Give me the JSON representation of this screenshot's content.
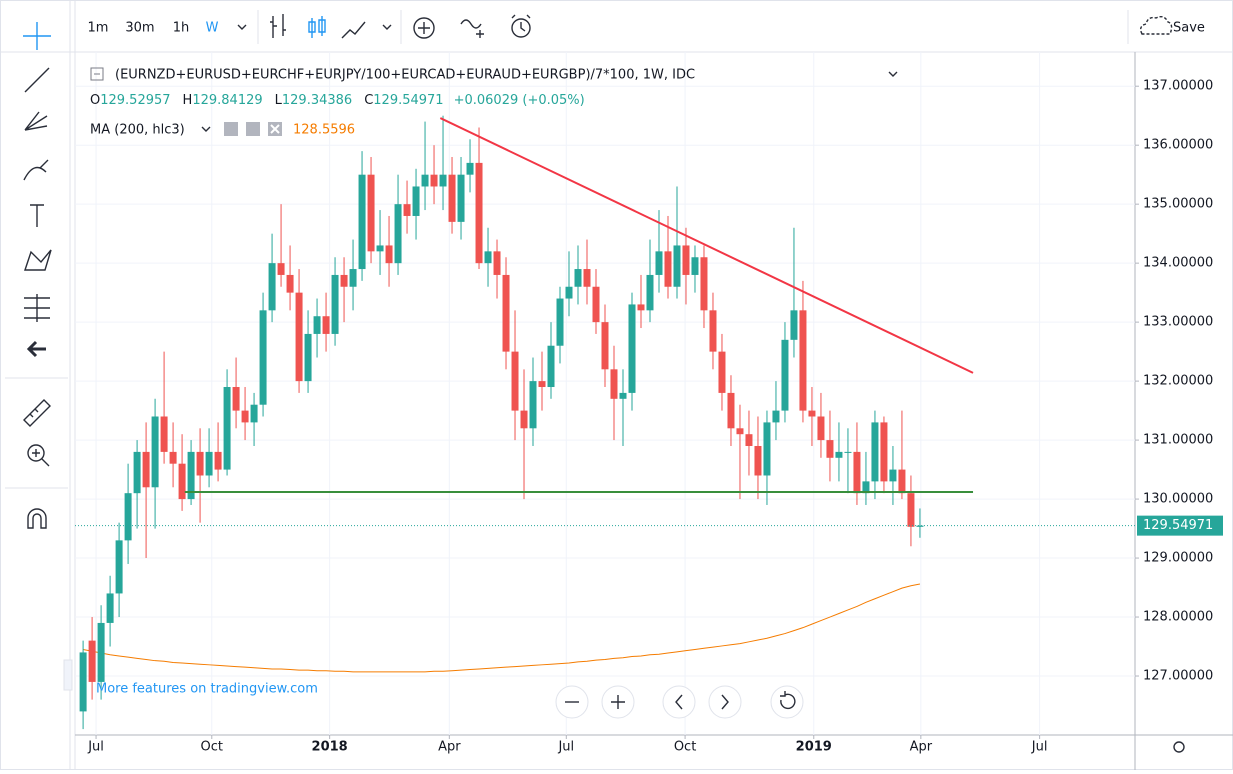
{
  "ui": {
    "intervals": [
      "1m",
      "30m",
      "1h",
      "W"
    ],
    "save": "Save",
    "promo": "More features on tradingview.com"
  },
  "chart_data": {
    "type": "candlestick",
    "title": "(EURNZD+EURUSD+EURCHF+EURJPY/100+EURCAD+EURAUD+EURGBP)/7*100, 1W, IDC",
    "ohlc_legend": [
      {
        "label": "O",
        "text": "129.52957"
      },
      {
        "label": "H",
        "text": "129.84129"
      },
      {
        "label": "L",
        "text": "129.34386"
      },
      {
        "label": "C",
        "text": "129.54971"
      }
    ],
    "change": "+0.06029 (+0.05%)",
    "up_color": "#26a69a",
    "down_color": "#ef5350",
    "open": [
      126.4,
      127.6,
      126.9,
      127.9,
      128.4,
      129.3,
      130.1,
      130.8,
      130.2,
      131.4,
      130.8,
      130.6,
      130.0,
      130.8,
      130.4,
      130.8,
      130.5,
      131.9,
      131.5,
      131.3,
      131.6,
      133.2,
      134.0,
      133.8,
      133.5,
      132.0,
      132.8,
      133.1,
      132.8,
      133.8,
      133.6,
      133.9,
      135.5,
      134.2,
      134.3,
      134.0,
      135.0,
      134.8,
      135.3,
      135.5,
      135.3,
      135.5,
      134.7,
      135.5,
      135.7,
      134.0,
      134.2,
      133.8,
      132.5,
      131.5,
      131.2,
      132.0,
      131.9,
      132.6,
      133.4,
      133.6,
      133.9,
      133.6,
      133.0,
      132.2,
      131.7,
      131.8,
      133.3,
      133.2,
      133.8,
      134.2,
      133.6,
      134.3,
      133.8,
      134.1,
      133.2,
      132.5,
      131.8,
      131.2,
      131.1,
      130.9,
      130.4,
      131.3,
      131.5,
      132.7,
      133.2,
      131.5,
      131.4,
      131.0,
      130.7,
      130.8,
      130.8,
      130.1,
      130.3,
      131.3,
      130.3,
      130.5,
      130.1,
      129.52957
    ],
    "high": [
      127.6,
      128.0,
      128.2,
      128.7,
      129.6,
      130.6,
      131.0,
      131.3,
      131.7,
      132.5,
      131.3,
      131.1,
      131.0,
      131.2,
      131.2,
      131.3,
      132.2,
      132.4,
      131.9,
      131.8,
      133.5,
      134.5,
      135.0,
      134.3,
      133.9,
      133.2,
      133.4,
      133.5,
      134.1,
      134.1,
      134.4,
      135.9,
      135.8,
      134.9,
      134.8,
      135.5,
      135.4,
      135.6,
      136.4,
      136.0,
      136.5,
      135.8,
      135.8,
      136.1,
      136.3,
      134.6,
      134.4,
      134.1,
      133.2,
      132.2,
      132.4,
      132.5,
      133.0,
      133.6,
      134.2,
      134.3,
      134.4,
      133.9,
      133.3,
      132.6,
      132.2,
      133.5,
      133.8,
      134.4,
      134.9,
      134.8,
      135.3,
      134.6,
      134.3,
      134.3,
      133.5,
      132.8,
      132.1,
      131.6,
      131.5,
      131.4,
      131.5,
      132.0,
      133.0,
      134.6,
      133.7,
      131.9,
      131.8,
      131.5,
      131.3,
      131.2,
      131.3,
      130.8,
      131.5,
      131.4,
      130.9,
      131.5,
      130.4,
      129.84129
    ],
    "low": [
      126.1,
      126.6,
      126.6,
      127.5,
      128.0,
      128.9,
      129.5,
      129.0,
      129.5,
      130.6,
      130.2,
      129.8,
      129.9,
      129.6,
      130.2,
      130.3,
      130.4,
      131.2,
      131.0,
      130.9,
      131.4,
      133.0,
      133.6,
      133.2,
      131.8,
      131.8,
      132.4,
      132.5,
      132.6,
      133.0,
      133.2,
      133.7,
      134.0,
      133.8,
      133.6,
      133.8,
      134.5,
      134.4,
      134.9,
      135.0,
      134.9,
      134.5,
      134.4,
      135.2,
      133.9,
      133.6,
      133.4,
      132.2,
      131.0,
      130.0,
      130.9,
      131.5,
      131.7,
      132.3,
      133.1,
      133.3,
      133.3,
      132.8,
      131.9,
      131.0,
      130.9,
      131.5,
      132.9,
      133.0,
      133.5,
      133.4,
      133.4,
      133.3,
      133.5,
      132.9,
      132.2,
      131.5,
      130.9,
      130.0,
      130.4,
      130.0,
      129.9,
      131.0,
      131.3,
      132.4,
      131.3,
      130.9,
      130.7,
      130.3,
      130.3,
      130.1,
      129.9,
      129.9,
      130.0,
      130.1,
      129.9,
      130.0,
      129.2,
      129.34386
    ],
    "close": [
      127.4,
      126.9,
      127.9,
      128.4,
      129.3,
      130.1,
      130.8,
      130.2,
      131.4,
      130.8,
      130.6,
      130.0,
      130.8,
      130.4,
      130.8,
      130.5,
      131.9,
      131.5,
      131.3,
      131.6,
      133.2,
      134.0,
      133.8,
      133.5,
      132.0,
      132.8,
      133.1,
      132.8,
      133.8,
      133.6,
      133.9,
      135.5,
      134.2,
      134.3,
      134.0,
      135.0,
      134.8,
      135.3,
      135.5,
      135.3,
      135.5,
      134.7,
      135.5,
      135.7,
      134.0,
      134.2,
      133.8,
      132.5,
      131.5,
      131.2,
      132.0,
      131.9,
      132.6,
      133.4,
      133.6,
      133.9,
      133.6,
      133.0,
      132.2,
      131.7,
      131.8,
      133.3,
      133.2,
      133.8,
      134.2,
      133.6,
      134.3,
      133.8,
      134.1,
      133.2,
      132.5,
      131.8,
      131.2,
      131.1,
      130.9,
      130.4,
      131.3,
      131.5,
      132.7,
      133.2,
      131.5,
      131.4,
      131.0,
      130.7,
      130.8,
      130.8,
      130.1,
      130.3,
      131.3,
      130.3,
      130.5,
      130.1,
      129.53,
      129.54971
    ],
    "ma": {
      "label": "MA (200, hlc3)",
      "color": "#f57c00",
      "values": [
        127.45,
        127.42,
        127.39,
        127.36,
        127.34,
        127.32,
        127.3,
        127.28,
        127.26,
        127.25,
        127.23,
        127.22,
        127.21,
        127.2,
        127.19,
        127.18,
        127.17,
        127.16,
        127.15,
        127.14,
        127.13,
        127.12,
        127.12,
        127.11,
        127.1,
        127.1,
        127.09,
        127.09,
        127.08,
        127.08,
        127.07,
        127.07,
        127.07,
        127.07,
        127.07,
        127.07,
        127.07,
        127.07,
        127.07,
        127.08,
        127.08,
        127.09,
        127.1,
        127.11,
        127.12,
        127.13,
        127.14,
        127.15,
        127.16,
        127.17,
        127.18,
        127.19,
        127.2,
        127.21,
        127.22,
        127.24,
        127.25,
        127.27,
        127.28,
        127.3,
        127.31,
        127.33,
        127.34,
        127.36,
        127.37,
        127.39,
        127.41,
        127.43,
        127.45,
        127.47,
        127.49,
        127.51,
        127.53,
        127.55,
        127.58,
        127.61,
        127.64,
        127.68,
        127.72,
        127.77,
        127.82,
        127.88,
        127.94,
        128.0,
        128.06,
        128.12,
        128.18,
        128.25,
        128.31,
        128.37,
        128.43,
        128.49,
        128.53,
        128.5596
      ]
    },
    "drawings": [
      {
        "x": [
          39.7,
          98.9
        ],
        "y": [
          136.46,
          132.14
        ],
        "color": "#f23645"
      },
      {
        "x": [
          11.3,
          98.9
        ],
        "y": [
          130.12,
          130.12
        ],
        "color": "#388e3c"
      }
    ],
    "xlim": [
      -0.9,
      116.9
    ],
    "xticks": [
      {
        "value": 1.44,
        "label": "Jul"
      },
      {
        "value": 14.3,
        "label": "Oct"
      },
      {
        "value": 27.4,
        "label": "2018"
      },
      {
        "value": 40.7,
        "label": "Apr"
      },
      {
        "value": 53.7,
        "label": "Jul"
      },
      {
        "value": 66.9,
        "label": "Oct"
      },
      {
        "value": 81.2,
        "label": "2019"
      },
      {
        "value": 93.1,
        "label": "Apr"
      },
      {
        "value": 106.3,
        "label": "Jul"
      }
    ],
    "ylim": [
      126.0,
      137.58
    ],
    "yticks": [
      {
        "value": 127,
        "label": "127.00000"
      },
      {
        "value": 128,
        "label": "128.00000"
      },
      {
        "value": 129,
        "label": "129.00000"
      },
      {
        "value": 130,
        "label": "130.00000"
      },
      {
        "value": 131,
        "label": "131.00000"
      },
      {
        "value": 132,
        "label": "132.00000"
      },
      {
        "value": 133,
        "label": "133.00000"
      },
      {
        "value": 134,
        "label": "134.00000"
      },
      {
        "value": 135,
        "label": "135.00000"
      },
      {
        "value": 136,
        "label": "136.00000"
      },
      {
        "value": 137,
        "label": "137.00000"
      }
    ],
    "grid": true
  }
}
